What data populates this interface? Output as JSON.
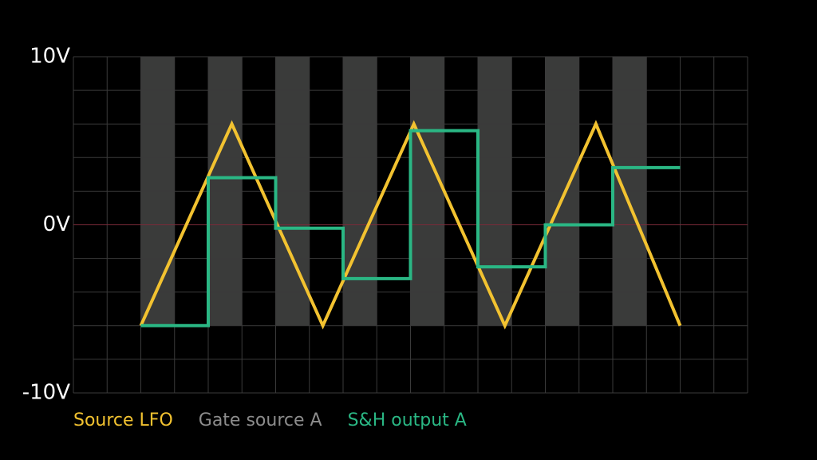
{
  "chart_data": {
    "type": "line",
    "xlim": [
      0,
      20
    ],
    "ylim": [
      -10,
      10
    ],
    "xgrid": [
      0,
      1,
      2,
      3,
      4,
      5,
      6,
      7,
      8,
      9,
      10,
      11,
      12,
      13,
      14,
      15,
      16,
      17,
      18,
      19,
      20
    ],
    "ygrid": [
      -10,
      -8,
      -6,
      -4,
      -2,
      0,
      2,
      4,
      6,
      8,
      10
    ],
    "yticks": [
      {
        "value": 10,
        "label": "10V"
      },
      {
        "value": 0,
        "label": "0V"
      },
      {
        "value": -10,
        "label": "-10V"
      }
    ],
    "grid_color": "#3a3a3a",
    "zero_color": "#7a2a38",
    "gate": {
      "name": "Gate source A",
      "color": "#3a3b3a",
      "label_color": "#8c8c8c",
      "x": [
        2,
        4,
        6,
        8,
        10,
        12,
        14,
        16
      ],
      "width": 1,
      "low": -6,
      "high": 10
    },
    "series": [
      {
        "name": "Source LFO",
        "color": "#f2c230",
        "step": false,
        "x": [
          2,
          4.7,
          7.4,
          10.1,
          12.8,
          15.5,
          18
        ],
        "values": [
          -6,
          6,
          -6,
          6,
          -6,
          6,
          -6
        ]
      },
      {
        "name": "S&H output A",
        "color": "#2ab784",
        "step": true,
        "x": [
          2,
          4,
          6,
          8,
          10,
          12,
          14,
          16,
          18
        ],
        "values": [
          -6,
          2.8,
          -0.2,
          -3.2,
          5.6,
          -2.5,
          0,
          3.4,
          3.4
        ]
      }
    ]
  }
}
